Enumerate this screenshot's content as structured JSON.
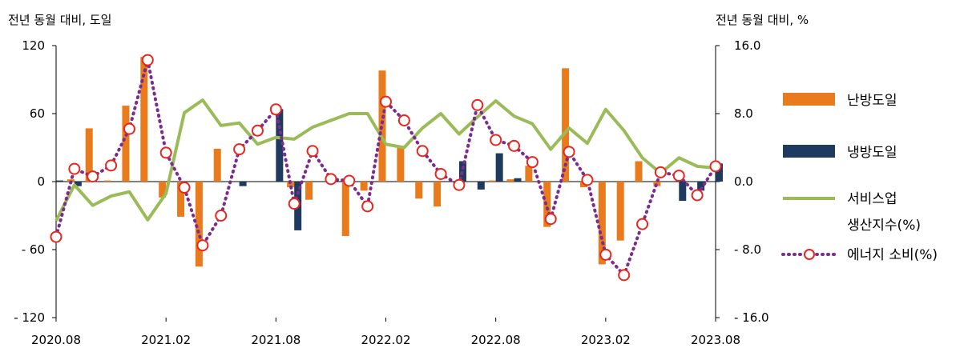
{
  "chart_data": {
    "type": "bar+line",
    "y_left_title": "전년 동월 대비, 도일",
    "y_right_title": "전년 동월 대비, %",
    "y_left_ticks": [
      "120",
      "60",
      "0",
      "- 60",
      "- 120"
    ],
    "y_left_ylim": [
      -120,
      120
    ],
    "y_right_ticks": [
      "16.0",
      "8.0",
      "0.0",
      "- 8.0",
      "- 16.0"
    ],
    "y_right_ylim": [
      -16,
      16
    ],
    "x_tick_labels": [
      "2020.08",
      "2021.02",
      "2021.08",
      "2022.02",
      "2022.08",
      "2023.02",
      "2023.08"
    ],
    "x": [
      "2020.08",
      "2020.09",
      "2020.10",
      "2020.11",
      "2020.12",
      "2021.01",
      "2021.02",
      "2021.03",
      "2021.04",
      "2021.05",
      "2021.06",
      "2021.07",
      "2021.08",
      "2021.09",
      "2021.10",
      "2021.11",
      "2021.12",
      "2022.01",
      "2022.02",
      "2022.03",
      "2022.04",
      "2022.05",
      "2022.06",
      "2022.07",
      "2022.08",
      "2022.09",
      "2022.10",
      "2022.11",
      "2022.12",
      "2023.01",
      "2023.02",
      "2023.03",
      "2023.04",
      "2023.05",
      "2023.06",
      "2023.07",
      "2023.08"
    ],
    "legend_position": "right",
    "grid": false,
    "series": [
      {
        "name": "난방도일",
        "type": "bar",
        "axis": "left",
        "color": "#E97B1C",
        "values": [
          0,
          2,
          47,
          1,
          67,
          110,
          -14,
          -31,
          -75,
          29,
          0,
          0,
          0,
          -5,
          -16,
          0,
          -48,
          -8,
          98,
          30,
          -15,
          -22,
          0,
          0,
          1,
          2,
          14,
          -40,
          100,
          -5,
          -73,
          -52,
          18,
          -4,
          0,
          0,
          0
        ]
      },
      {
        "name": "냉방도일",
        "type": "bar",
        "axis": "left",
        "color": "#1F3A5F",
        "values": [
          1,
          -4,
          0,
          0,
          0,
          0,
          0,
          0,
          0,
          0,
          -4,
          0,
          64,
          -43,
          0,
          0,
          0,
          0,
          0,
          0,
          0,
          0,
          18,
          -7,
          25,
          3,
          0,
          0,
          0,
          0,
          0,
          0,
          0,
          0,
          -17,
          -8,
          16
        ]
      },
      {
        "name": "서비스업 생산지수(%)",
        "type": "line",
        "axis": "right",
        "color": "#9BBB59",
        "values": [
          -4.6,
          -0.4,
          -2.8,
          -1.7,
          -1.2,
          -4.5,
          -1.4,
          8.1,
          9.6,
          6.6,
          6.9,
          4.4,
          5.2,
          5.0,
          6.4,
          7.2,
          8.0,
          8.0,
          4.4,
          4.0,
          6.3,
          8.0,
          5.6,
          7.6,
          9.5,
          7.7,
          6.8,
          3.8,
          6.3,
          4.5,
          8.5,
          6.0,
          2.8,
          1.0,
          2.8,
          1.8,
          1.6
        ]
      },
      {
        "name": "에너지 소비(%)",
        "type": "line",
        "axis": "right",
        "color": "#7B2C8E",
        "marker_color": "#E8261E",
        "values": [
          -6.5,
          1.5,
          0.6,
          1.9,
          6.2,
          14.3,
          3.4,
          -0.7,
          -7.5,
          -4.0,
          3.8,
          6.0,
          8.5,
          -2.6,
          3.6,
          0.3,
          0.1,
          -2.9,
          9.4,
          7.2,
          3.6,
          0.9,
          -0.4,
          9.0,
          4.9,
          4.2,
          2.3,
          -4.4,
          3.5,
          0.2,
          -8.6,
          -11.0,
          -5.0,
          1.1,
          0.7,
          -1.6,
          1.8
        ]
      }
    ]
  }
}
